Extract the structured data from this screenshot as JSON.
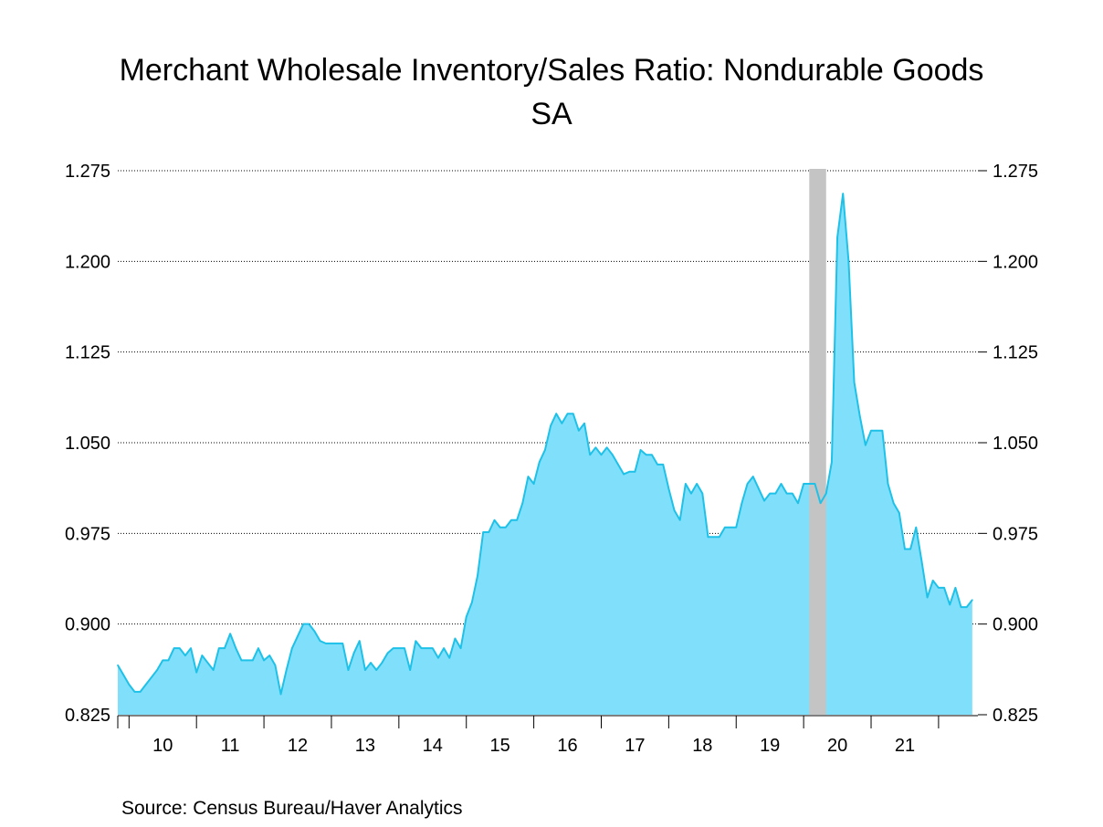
{
  "chart_data": {
    "type": "area",
    "title": "Merchant Wholesale Inventory/Sales Ratio: Nondurable Goods",
    "subtitle": "SA",
    "source": "Source:  Census Bureau/Haver Analytics",
    "ylim": [
      0.825,
      1.275
    ],
    "yticks": [
      "0.825",
      "0.900",
      "0.975",
      "1.050",
      "1.125",
      "1.200",
      "1.275"
    ],
    "xticks": [
      "10",
      "11",
      "12",
      "13",
      "14",
      "15",
      "16",
      "17",
      "18",
      "19",
      "20",
      "21"
    ],
    "start": "2009-11",
    "grid": "horizontal dotted",
    "fill_color": "#80dffb",
    "line_color": "#1ec1e8",
    "recession_color": "#c4c4c4",
    "recession_band": [
      "2020-02",
      "2020-04"
    ],
    "series": [
      {
        "values": [
          0.866,
          0.858,
          0.85,
          0.844,
          0.844,
          0.85,
          0.856,
          0.862,
          0.87,
          0.87,
          0.88,
          0.88,
          0.874,
          0.88,
          0.86,
          0.874,
          0.868,
          0.862,
          0.88,
          0.88,
          0.892,
          0.88,
          0.87,
          0.87,
          0.87,
          0.88,
          0.87,
          0.874,
          0.866,
          0.842,
          0.862,
          0.88,
          0.89,
          0.9,
          0.9,
          0.894,
          0.886,
          0.884,
          0.884,
          0.884,
          0.884,
          0.862,
          0.876,
          0.886,
          0.862,
          0.868,
          0.862,
          0.868,
          0.876,
          0.88,
          0.88,
          0.88,
          0.862,
          0.886,
          0.88,
          0.88,
          0.88,
          0.872,
          0.88,
          0.872,
          0.888,
          0.88,
          0.906,
          0.918,
          0.94,
          0.976,
          0.976,
          0.986,
          0.98,
          0.98,
          0.986,
          0.986,
          1.0,
          1.022,
          1.016,
          1.034,
          1.044,
          1.064,
          1.074,
          1.066,
          1.074,
          1.074,
          1.06,
          1.066,
          1.04,
          1.046,
          1.04,
          1.046,
          1.04,
          1.032,
          1.024,
          1.026,
          1.026,
          1.044,
          1.04,
          1.04,
          1.032,
          1.032,
          1.012,
          0.994,
          0.986,
          1.016,
          1.008,
          1.016,
          1.008,
          0.972,
          0.972,
          0.972,
          0.98,
          0.98,
          0.98,
          1.0,
          1.016,
          1.022,
          1.012,
          1.002,
          1.008,
          1.008,
          1.016,
          1.008,
          1.008,
          1.0,
          1.016,
          1.016,
          1.016,
          1.0,
          1.008,
          1.034,
          1.22,
          1.256,
          1.2,
          1.1,
          1.072,
          1.048,
          1.06,
          1.06,
          1.06,
          1.016,
          1.0,
          0.992,
          0.962,
          0.962,
          0.98,
          0.952,
          0.922,
          0.936,
          0.93,
          0.93,
          0.916,
          0.93,
          0.914,
          0.914,
          0.92
        ]
      }
    ]
  }
}
